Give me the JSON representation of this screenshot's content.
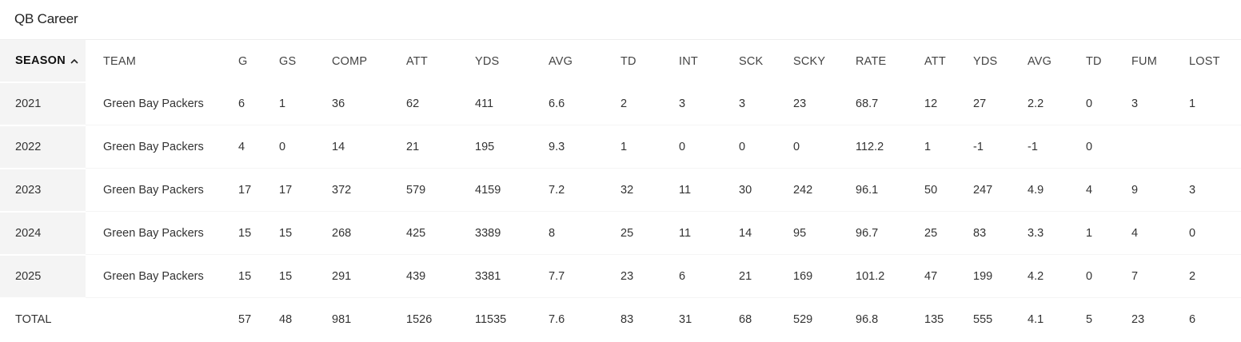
{
  "title": "QB Career",
  "columns": [
    "SEASON",
    "TEAM",
    "G",
    "GS",
    "COMP",
    "ATT",
    "YDS",
    "AVG",
    "TD",
    "INT",
    "SCK",
    "SCKY",
    "RATE",
    "ATT",
    "YDS",
    "AVG",
    "TD",
    "FUM",
    "LOST"
  ],
  "rows": [
    [
      "2021",
      "Green Bay Packers",
      "6",
      "1",
      "36",
      "62",
      "411",
      "6.6",
      "2",
      "3",
      "3",
      "23",
      "68.7",
      "12",
      "27",
      "2.2",
      "0",
      "3",
      "1"
    ],
    [
      "2022",
      "Green Bay Packers",
      "4",
      "0",
      "14",
      "21",
      "195",
      "9.3",
      "1",
      "0",
      "0",
      "0",
      "112.2",
      "1",
      "-1",
      "-1",
      "0",
      "",
      ""
    ],
    [
      "2023",
      "Green Bay Packers",
      "17",
      "17",
      "372",
      "579",
      "4159",
      "7.2",
      "32",
      "11",
      "30",
      "242",
      "96.1",
      "50",
      "247",
      "4.9",
      "4",
      "9",
      "3"
    ],
    [
      "2024",
      "Green Bay Packers",
      "15",
      "15",
      "268",
      "425",
      "3389",
      "8",
      "25",
      "11",
      "14",
      "95",
      "96.7",
      "25",
      "83",
      "3.3",
      "1",
      "4",
      "0"
    ],
    [
      "2025",
      "Green Bay Packers",
      "15",
      "15",
      "291",
      "439",
      "3381",
      "7.7",
      "23",
      "6",
      "21",
      "169",
      "101.2",
      "47",
      "199",
      "4.2",
      "0",
      "7",
      "2"
    ]
  ],
  "total": [
    "TOTAL",
    "",
    "57",
    "48",
    "981",
    "1526",
    "11535",
    "7.6",
    "83",
    "31",
    "68",
    "529",
    "96.8",
    "135",
    "555",
    "4.1",
    "5",
    "23",
    "6"
  ],
  "sort": {
    "column": "SEASON",
    "direction": "ascending",
    "icon": "chevron-up-icon"
  }
}
